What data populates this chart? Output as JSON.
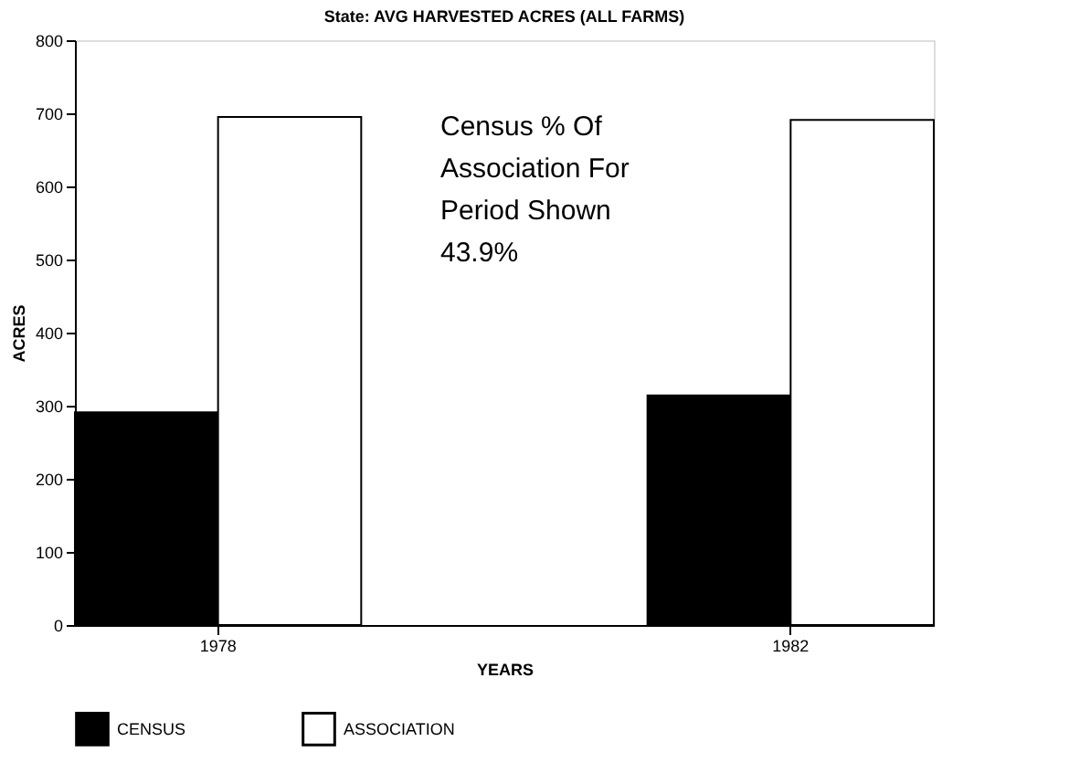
{
  "chart_data": {
    "type": "bar",
    "title": "State: AVG HARVESTED ACRES (ALL FARMS)",
    "xlabel": "YEARS",
    "ylabel": "ACRES",
    "categories": [
      "1978",
      "1982"
    ],
    "series": [
      {
        "name": "CENSUS",
        "color": "#000000",
        "values": [
          291,
          314
        ]
      },
      {
        "name": "ASSOCIATION",
        "color": "#ffffff",
        "values": [
          695,
          691
        ]
      }
    ],
    "ylim": [
      0,
      800
    ],
    "yticks": [
      0,
      100,
      200,
      300,
      400,
      500,
      600,
      700,
      800
    ],
    "annotations": [
      "Census % Of\nAssociation For\nPeriod Shown\n    43.9%"
    ],
    "grid": false,
    "legend": "bottom"
  }
}
